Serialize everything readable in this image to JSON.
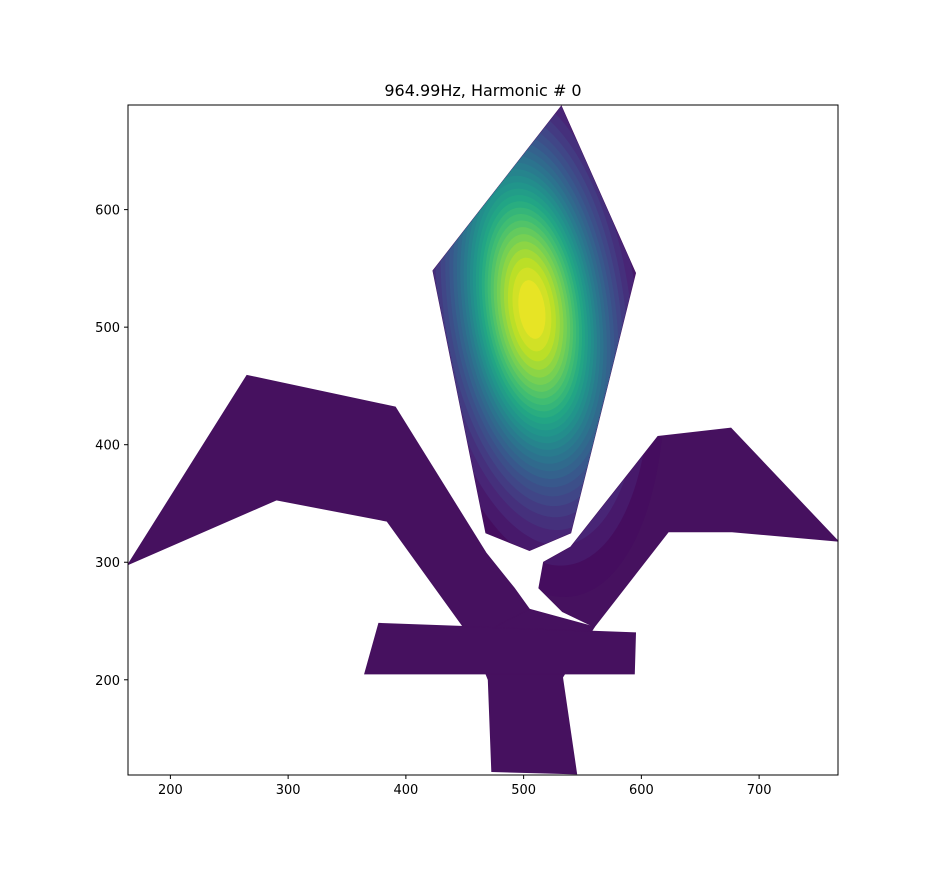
{
  "chart_data": {
    "type": "contour",
    "title": "964.99Hz, Harmonic # 0",
    "xlabel": "",
    "ylabel": "",
    "xlim": [
      164,
      767
    ],
    "ylim": [
      119,
      689
    ],
    "xticks": [
      200,
      300,
      400,
      500,
      600,
      700
    ],
    "yticks": [
      200,
      300,
      400,
      500,
      600
    ],
    "colormap": "viridis",
    "grid": false,
    "background_fill_color": "#440154",
    "leaves": [
      {
        "name": "top",
        "points": [
          [
            423,
            548
          ],
          [
            532,
            688
          ],
          [
            595,
            546
          ],
          [
            540,
            325
          ],
          [
            505,
            310
          ],
          [
            468,
            325
          ]
        ]
      },
      {
        "name": "left",
        "points": [
          [
            164,
            298
          ],
          [
            265,
            459
          ],
          [
            391,
            432
          ],
          [
            468,
            308
          ],
          [
            492,
            278
          ],
          [
            505,
            260
          ],
          [
            480,
            245
          ],
          [
            456,
            235
          ],
          [
            384,
            335
          ],
          [
            290,
            353
          ]
        ]
      },
      {
        "name": "right",
        "points": [
          [
            540,
            313
          ],
          [
            517,
            300
          ],
          [
            513,
            278
          ],
          [
            533,
            258
          ],
          [
            560,
            245
          ],
          [
            623,
            326
          ],
          [
            677,
            326
          ],
          [
            767,
            318
          ],
          [
            676,
            414
          ],
          [
            614,
            407
          ]
        ]
      },
      {
        "name": "stem",
        "points": [
          [
            456,
            235
          ],
          [
            470,
            200
          ],
          [
            473,
            122
          ],
          [
            545,
            120
          ],
          [
            533,
            202
          ],
          [
            560,
            245
          ],
          [
            505,
            260
          ]
        ]
      },
      {
        "name": "crossbar",
        "points": [
          [
            377,
            248
          ],
          [
            595,
            240
          ],
          [
            594,
            205
          ],
          [
            365,
            205
          ]
        ]
      }
    ],
    "field": {
      "peak_value": 1.0,
      "peak_center": [
        507,
        515
      ],
      "spread_x": 42,
      "spread_y": 95
    }
  }
}
